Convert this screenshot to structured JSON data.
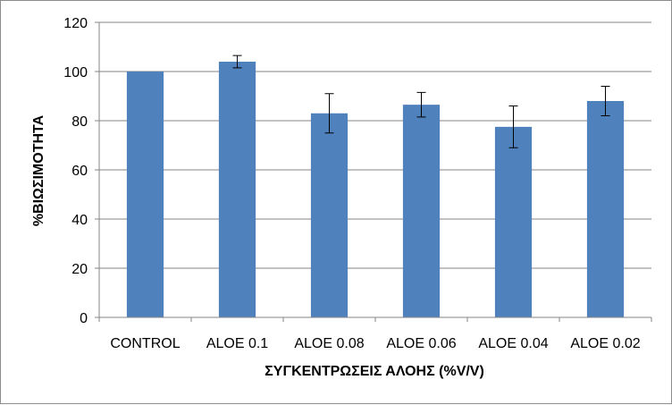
{
  "chart_data": {
    "type": "bar",
    "title": "",
    "xlabel": "ΣΥΓΚΕΝΤΡΩΣΕΙΣ ΑΛΟΗΣ (%V/V)",
    "ylabel": "%ΒΙΩΣΙΜΟΤΗΤΑ",
    "categories": [
      "CONTROL",
      "ALOE 0.1",
      "ALOE 0.08",
      "ALOE 0.06",
      "ALOE 0.04",
      "ALOE 0.02"
    ],
    "series": [
      {
        "values": [
          100,
          104,
          83,
          86.5,
          77.5,
          88
        ],
        "error": [
          0,
          2.5,
          8,
          5,
          8.5,
          6
        ]
      }
    ],
    "ylim": [
      0,
      120
    ],
    "yticks": [
      0,
      20,
      40,
      60,
      80,
      100,
      120
    ],
    "grid": true,
    "legend": "none",
    "bar_color": "#4f81bd",
    "gridline_color": "#868686",
    "axis_color": "#868686"
  }
}
